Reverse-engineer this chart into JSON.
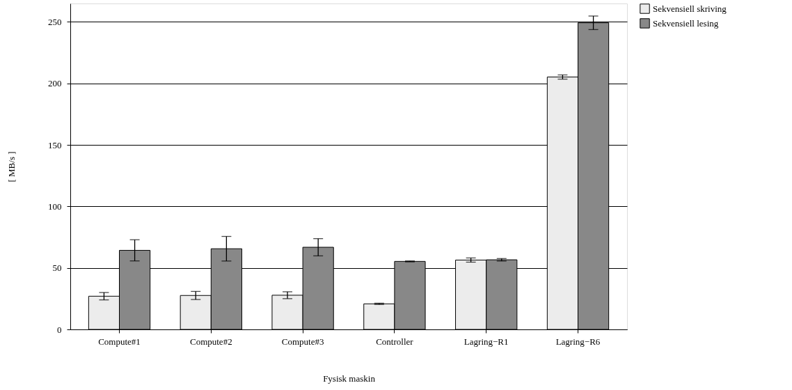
{
  "chart_data": {
    "type": "bar",
    "xlabel": "Fysisk maskin",
    "ylabel": "[ MB/s ]",
    "categories": [
      "Compute#1",
      "Compute#2",
      "Compute#3",
      "Controller",
      "Lagring−R1",
      "Lagring−R6"
    ],
    "series": [
      {
        "name": "Sekvensiell skriving",
        "color": "#ececec",
        "values": [
          27,
          27.6,
          27.8,
          20.8,
          56.4,
          205.2
        ],
        "errors": [
          3,
          3.3,
          2.8,
          0.5,
          1.7,
          1.7
        ]
      },
      {
        "name": "Sekvensiell lesing",
        "color": "#888888",
        "values": [
          64.3,
          65.6,
          66.8,
          55.3,
          56.6,
          249.3
        ],
        "errors": [
          8.6,
          10,
          7,
          0.4,
          1,
          5.5
        ]
      }
    ],
    "ylim": [
      0,
      265
    ],
    "yticks": [
      0,
      50,
      100,
      150,
      200,
      250
    ],
    "grid": "y",
    "legend": "right"
  }
}
